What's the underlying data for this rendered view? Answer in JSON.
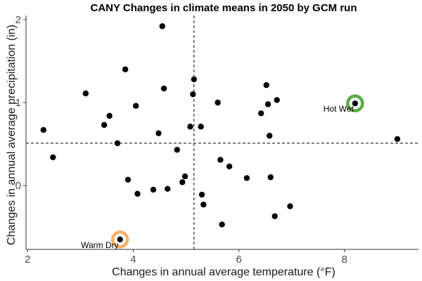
{
  "chart_data": {
    "type": "scatter",
    "title": "CANY Changes in climate means in 2050 by GCM run",
    "xlabel": "Changes in annual average temperature (°F)",
    "ylabel": "Changes in annual average precipitation (in)",
    "xlim": [
      1.97,
      9.4
    ],
    "ylim": [
      -0.77,
      2.05
    ],
    "xticks": [
      2,
      4,
      6,
      8
    ],
    "yticks": [
      0,
      1,
      2
    ],
    "grid": false,
    "ref_lines": {
      "x": 5.15,
      "y": 0.51
    },
    "point_color": "#000000",
    "points": [
      {
        "x": 2.3,
        "y": 0.67
      },
      {
        "x": 2.48,
        "y": 0.34
      },
      {
        "x": 3.1,
        "y": 1.11
      },
      {
        "x": 3.45,
        "y": 0.73
      },
      {
        "x": 3.55,
        "y": 0.84
      },
      {
        "x": 3.7,
        "y": 0.51
      },
      {
        "x": 3.85,
        "y": 1.4
      },
      {
        "x": 3.9,
        "y": 0.07
      },
      {
        "x": 4.05,
        "y": 0.96
      },
      {
        "x": 4.08,
        "y": -0.1
      },
      {
        "x": 4.38,
        "y": -0.05
      },
      {
        "x": 4.48,
        "y": 0.63
      },
      {
        "x": 4.55,
        "y": 1.92
      },
      {
        "x": 4.58,
        "y": 1.17
      },
      {
        "x": 4.65,
        "y": -0.04
      },
      {
        "x": 4.83,
        "y": 0.43
      },
      {
        "x": 4.93,
        "y": 0.04
      },
      {
        "x": 4.98,
        "y": 0.11
      },
      {
        "x": 5.08,
        "y": 0.71
      },
      {
        "x": 5.13,
        "y": 1.1
      },
      {
        "x": 5.15,
        "y": 1.28
      },
      {
        "x": 5.28,
        "y": 0.71
      },
      {
        "x": 5.3,
        "y": -0.11
      },
      {
        "x": 5.33,
        "y": -0.23
      },
      {
        "x": 5.6,
        "y": 1.0
      },
      {
        "x": 5.65,
        "y": 0.31
      },
      {
        "x": 5.68,
        "y": -0.47
      },
      {
        "x": 5.82,
        "y": 0.23
      },
      {
        "x": 6.15,
        "y": 0.09
      },
      {
        "x": 6.42,
        "y": 0.87
      },
      {
        "x": 6.52,
        "y": 1.21
      },
      {
        "x": 6.55,
        "y": 0.98
      },
      {
        "x": 6.58,
        "y": 0.6
      },
      {
        "x": 6.6,
        "y": 0.1
      },
      {
        "x": 6.68,
        "y": -0.37
      },
      {
        "x": 6.72,
        "y": 1.03
      },
      {
        "x": 6.97,
        "y": -0.25
      },
      {
        "x": 8.2,
        "y": 0.99
      },
      {
        "x": 9.0,
        "y": 0.56
      },
      {
        "x": 3.75,
        "y": -0.65
      }
    ],
    "highlights": [
      {
        "label": "Hot Wet",
        "x": 8.2,
        "y": 0.99,
        "color": "#5aab45"
      },
      {
        "label": "Warm Dry",
        "x": 3.75,
        "y": -0.65,
        "color": "#f6b06a"
      }
    ]
  }
}
